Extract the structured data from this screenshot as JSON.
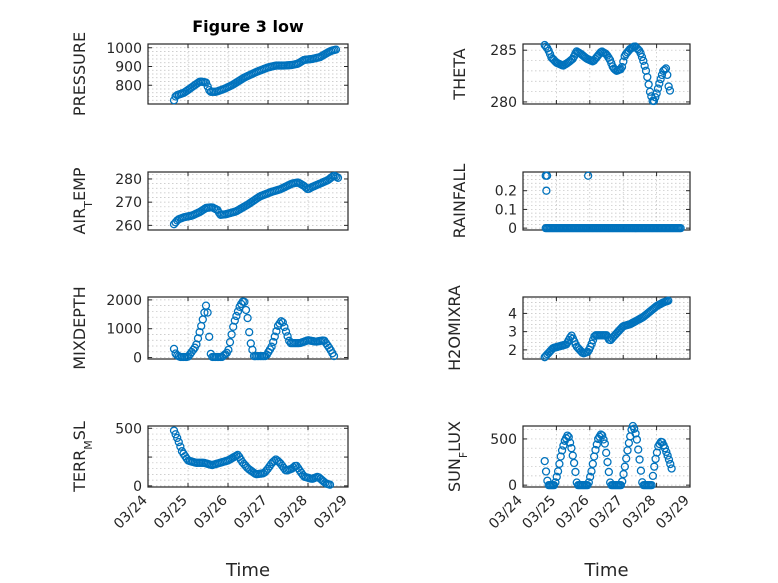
{
  "figure_title": "Figure 3 low",
  "colors": {
    "marker": "#0072BD",
    "axis": "#262626",
    "grid": "#bfbfbf"
  },
  "x_tick_labels": [
    "03/24",
    "03/25",
    "03/26",
    "03/27",
    "03/28",
    "03/29"
  ],
  "x_axis_label": "Time",
  "chart_data": [
    {
      "type": "scatter",
      "id": "pressure",
      "title": "Figure 3 low",
      "ylabel": "PRESSURE",
      "xlim": [
        0,
        5
      ],
      "ylim": [
        700,
        1020
      ],
      "yticks": [
        800,
        900,
        1000
      ],
      "yticklabels": [
        "800",
        "900",
        "1000"
      ],
      "xticklabels": [],
      "xlabel": "",
      "grid": true,
      "series": [
        {
          "keyframes": [
            [
              0.65,
              720
            ],
            [
              0.7,
              745
            ],
            [
              0.9,
              760
            ],
            [
              1.1,
              790
            ],
            [
              1.2,
              805
            ],
            [
              1.3,
              820
            ],
            [
              1.45,
              815
            ],
            [
              1.5,
              790
            ],
            [
              1.55,
              765
            ],
            [
              1.7,
              765
            ],
            [
              1.9,
              780
            ],
            [
              2.1,
              800
            ],
            [
              2.4,
              840
            ],
            [
              2.7,
              870
            ],
            [
              3.0,
              895
            ],
            [
              3.2,
              905
            ],
            [
              3.4,
              905
            ],
            [
              3.6,
              908
            ],
            [
              3.75,
              915
            ],
            [
              3.9,
              935
            ],
            [
              4.1,
              940
            ],
            [
              4.3,
              950
            ],
            [
              4.5,
              975
            ],
            [
              4.6,
              985
            ],
            [
              4.7,
              990
            ]
          ]
        }
      ]
    },
    {
      "type": "scatter",
      "id": "theta",
      "title": "",
      "ylabel": "THETA",
      "xlim": [
        0,
        5
      ],
      "ylim": [
        279.8,
        285.6
      ],
      "yticks": [
        280,
        285
      ],
      "yticklabels": [
        "280",
        "285"
      ],
      "xticklabels": [],
      "xlabel": "",
      "grid": true,
      "series": [
        {
          "keyframes": [
            [
              0.65,
              285.5
            ],
            [
              0.75,
              285.1
            ],
            [
              0.85,
              284.3
            ],
            [
              1.0,
              283.8
            ],
            [
              1.2,
              283.5
            ],
            [
              1.35,
              283.8
            ],
            [
              1.5,
              284.2
            ],
            [
              1.6,
              284.9
            ],
            [
              1.75,
              284.6
            ],
            [
              1.9,
              284.2
            ],
            [
              2.1,
              283.9
            ],
            [
              2.2,
              284.3
            ],
            [
              2.35,
              284.9
            ],
            [
              2.5,
              284.6
            ],
            [
              2.6,
              284.1
            ],
            [
              2.7,
              283.3
            ],
            [
              2.8,
              283.0
            ],
            [
              2.95,
              283.2
            ],
            [
              3.05,
              284.5
            ],
            [
              3.2,
              285.1
            ],
            [
              3.35,
              285.4
            ],
            [
              3.5,
              284.9
            ],
            [
              3.6,
              284.0
            ],
            [
              3.7,
              282.8
            ],
            [
              3.8,
              281.0
            ],
            [
              3.9,
              279.9
            ],
            [
              4.0,
              280.8
            ],
            [
              4.1,
              282.0
            ],
            [
              4.2,
              283.0
            ],
            [
              4.3,
              283.3
            ],
            [
              4.35,
              281.6
            ],
            [
              4.4,
              281.1
            ]
          ]
        }
      ]
    },
    {
      "type": "scatter",
      "id": "air_temp",
      "title": "",
      "ylabel": "AIR_TEMP",
      "xlim": [
        0,
        5
      ],
      "ylim": [
        258,
        283
      ],
      "yticks": [
        260,
        270,
        280
      ],
      "yticklabels": [
        "260",
        "270",
        "280"
      ],
      "xticklabels": [],
      "xlabel": "",
      "grid": true,
      "series": [
        {
          "keyframes": [
            [
              0.65,
              260.5
            ],
            [
              0.75,
              262.5
            ],
            [
              0.9,
              263.5
            ],
            [
              1.1,
              264.2
            ],
            [
              1.3,
              265.8
            ],
            [
              1.45,
              267.5
            ],
            [
              1.6,
              267.8
            ],
            [
              1.75,
              266.5
            ],
            [
              1.8,
              264.5
            ],
            [
              1.95,
              264.8
            ],
            [
              2.2,
              266.0
            ],
            [
              2.5,
              269.0
            ],
            [
              2.8,
              272.5
            ],
            [
              3.1,
              274.5
            ],
            [
              3.3,
              275.5
            ],
            [
              3.6,
              278.0
            ],
            [
              3.75,
              278.5
            ],
            [
              3.9,
              277.0
            ],
            [
              4.0,
              275.5
            ],
            [
              4.1,
              276.5
            ],
            [
              4.3,
              278.0
            ],
            [
              4.5,
              279.5
            ],
            [
              4.65,
              281.5
            ],
            [
              4.75,
              280.5
            ]
          ]
        }
      ]
    },
    {
      "type": "scatter",
      "id": "rainfall",
      "title": "",
      "ylabel": "RAINFALL",
      "xlim": [
        0,
        5
      ],
      "ylim": [
        -0.01,
        0.3
      ],
      "yticks": [
        0,
        0.1,
        0.2
      ],
      "yticklabels": [
        "0",
        "0.1",
        "0.2"
      ],
      "xticklabels": [],
      "xlabel": "",
      "grid": true,
      "series": [
        {
          "keyframes": [
            [
              0.68,
              0
            ],
            [
              4.72,
              0
            ]
          ],
          "extra": [
            [
              0.68,
              0.28
            ],
            [
              0.72,
              0.28
            ],
            [
              0.7,
              0.2
            ],
            [
              1.95,
              0.28
            ]
          ]
        }
      ]
    },
    {
      "type": "scatter",
      "id": "mixdepth",
      "title": "",
      "ylabel": "MIXDEPTH",
      "xlim": [
        0,
        5
      ],
      "ylim": [
        -50,
        2100
      ],
      "yticks": [
        0,
        1000,
        2000
      ],
      "yticklabels": [
        "0",
        "1000",
        "2000"
      ],
      "xticklabels": [],
      "xlabel": "",
      "grid": true,
      "series": [
        {
          "keyframes": [
            [
              0.65,
              300
            ],
            [
              0.7,
              100
            ],
            [
              0.8,
              20
            ],
            [
              1.0,
              20
            ],
            [
              1.2,
              400
            ],
            [
              1.35,
              1200
            ],
            [
              1.45,
              1800
            ],
            [
              1.5,
              1500
            ],
            [
              1.55,
              200
            ],
            [
              1.6,
              20
            ],
            [
              1.85,
              20
            ],
            [
              2.0,
              200
            ],
            [
              2.15,
              1200
            ],
            [
              2.3,
              1800
            ],
            [
              2.4,
              2000
            ],
            [
              2.5,
              1300
            ],
            [
              2.55,
              600
            ],
            [
              2.65,
              50
            ],
            [
              2.95,
              50
            ],
            [
              3.1,
              400
            ],
            [
              3.25,
              1100
            ],
            [
              3.35,
              1300
            ],
            [
              3.45,
              900
            ],
            [
              3.55,
              500
            ],
            [
              3.8,
              500
            ],
            [
              4.0,
              600
            ],
            [
              4.2,
              550
            ],
            [
              4.4,
              600
            ],
            [
              4.55,
              300
            ],
            [
              4.65,
              50
            ]
          ]
        }
      ]
    },
    {
      "type": "scatter",
      "id": "h2omixra",
      "title": "",
      "ylabel": "H2OMIXRA",
      "xlim": [
        0,
        5
      ],
      "ylim": [
        1.5,
        4.9
      ],
      "yticks": [
        2,
        3,
        4
      ],
      "yticklabels": [
        "2",
        "3",
        "4"
      ],
      "xticklabels": [],
      "xlabel": "",
      "grid": true,
      "series": [
        {
          "keyframes": [
            [
              0.65,
              1.6
            ],
            [
              0.75,
              1.8
            ],
            [
              0.9,
              2.1
            ],
            [
              1.1,
              2.2
            ],
            [
              1.3,
              2.3
            ],
            [
              1.45,
              2.8
            ],
            [
              1.5,
              2.6
            ],
            [
              1.6,
              2.2
            ],
            [
              1.8,
              1.8
            ],
            [
              1.95,
              1.9
            ],
            [
              2.05,
              2.3
            ],
            [
              2.15,
              2.8
            ],
            [
              2.5,
              2.8
            ],
            [
              2.6,
              2.5
            ],
            [
              2.75,
              2.8
            ],
            [
              3.0,
              3.3
            ],
            [
              3.2,
              3.4
            ],
            [
              3.4,
              3.6
            ],
            [
              3.6,
              3.8
            ],
            [
              3.8,
              4.1
            ],
            [
              4.0,
              4.4
            ],
            [
              4.2,
              4.6
            ],
            [
              4.35,
              4.7
            ]
          ]
        }
      ]
    },
    {
      "type": "scatter",
      "id": "terr_msl",
      "title": "",
      "ylabel": "TERR_MSL",
      "xlim": [
        0,
        5
      ],
      "ylim": [
        -10,
        520
      ],
      "yticks": [
        0,
        250,
        500
      ],
      "yticklabels": [
        "0",
        "",
        "500"
      ],
      "xticklabels": [
        "03/24",
        "03/25",
        "03/26",
        "03/27",
        "03/28",
        "03/29"
      ],
      "xlabel": "Time",
      "grid": true,
      "series": [
        {
          "keyframes": [
            [
              0.65,
              480
            ],
            [
              0.75,
              400
            ],
            [
              0.85,
              300
            ],
            [
              1.0,
              220
            ],
            [
              1.2,
              200
            ],
            [
              1.4,
              200
            ],
            [
              1.6,
              180
            ],
            [
              1.8,
              200
            ],
            [
              2.0,
              220
            ],
            [
              2.1,
              240
            ],
            [
              2.25,
              270
            ],
            [
              2.35,
              210
            ],
            [
              2.5,
              150
            ],
            [
              2.7,
              100
            ],
            [
              2.9,
              110
            ],
            [
              3.0,
              150
            ],
            [
              3.1,
              200
            ],
            [
              3.2,
              230
            ],
            [
              3.3,
              200
            ],
            [
              3.45,
              130
            ],
            [
              3.6,
              150
            ],
            [
              3.7,
              180
            ],
            [
              3.8,
              130
            ],
            [
              3.9,
              80
            ],
            [
              4.1,
              60
            ],
            [
              4.25,
              80
            ],
            [
              4.35,
              50
            ],
            [
              4.45,
              20
            ],
            [
              4.55,
              10
            ]
          ]
        }
      ]
    },
    {
      "type": "scatter",
      "id": "sun_flux",
      "title": "",
      "ylabel": "SUN_FLUX",
      "xlim": [
        0,
        5
      ],
      "ylim": [
        -20,
        640
      ],
      "yticks": [
        0,
        500
      ],
      "yticklabels": [
        "0",
        "500"
      ],
      "xticklabels": [
        "03/24",
        "03/25",
        "03/26",
        "03/27",
        "03/28",
        "03/29"
      ],
      "xlabel": "Time",
      "grid": true,
      "series": [
        {
          "keyframes": [
            [
              0.65,
              260
            ],
            [
              0.7,
              120
            ],
            [
              0.75,
              0
            ],
            [
              0.95,
              0
            ],
            [
              1.05,
              150
            ],
            [
              1.15,
              350
            ],
            [
              1.25,
              480
            ],
            [
              1.35,
              550
            ],
            [
              1.45,
              400
            ],
            [
              1.55,
              200
            ],
            [
              1.62,
              0
            ],
            [
              1.95,
              0
            ],
            [
              2.05,
              150
            ],
            [
              2.15,
              350
            ],
            [
              2.25,
              500
            ],
            [
              2.35,
              560
            ],
            [
              2.45,
              450
            ],
            [
              2.55,
              200
            ],
            [
              2.62,
              0
            ],
            [
              2.95,
              0
            ],
            [
              3.05,
              200
            ],
            [
              3.15,
              420
            ],
            [
              3.25,
              600
            ],
            [
              3.3,
              650
            ],
            [
              3.4,
              520
            ],
            [
              3.5,
              250
            ],
            [
              3.58,
              0
            ],
            [
              3.85,
              0
            ],
            [
              3.95,
              250
            ],
            [
              4.05,
              420
            ],
            [
              4.15,
              480
            ],
            [
              4.25,
              400
            ],
            [
              4.35,
              300
            ],
            [
              4.45,
              180
            ]
          ]
        }
      ]
    }
  ]
}
